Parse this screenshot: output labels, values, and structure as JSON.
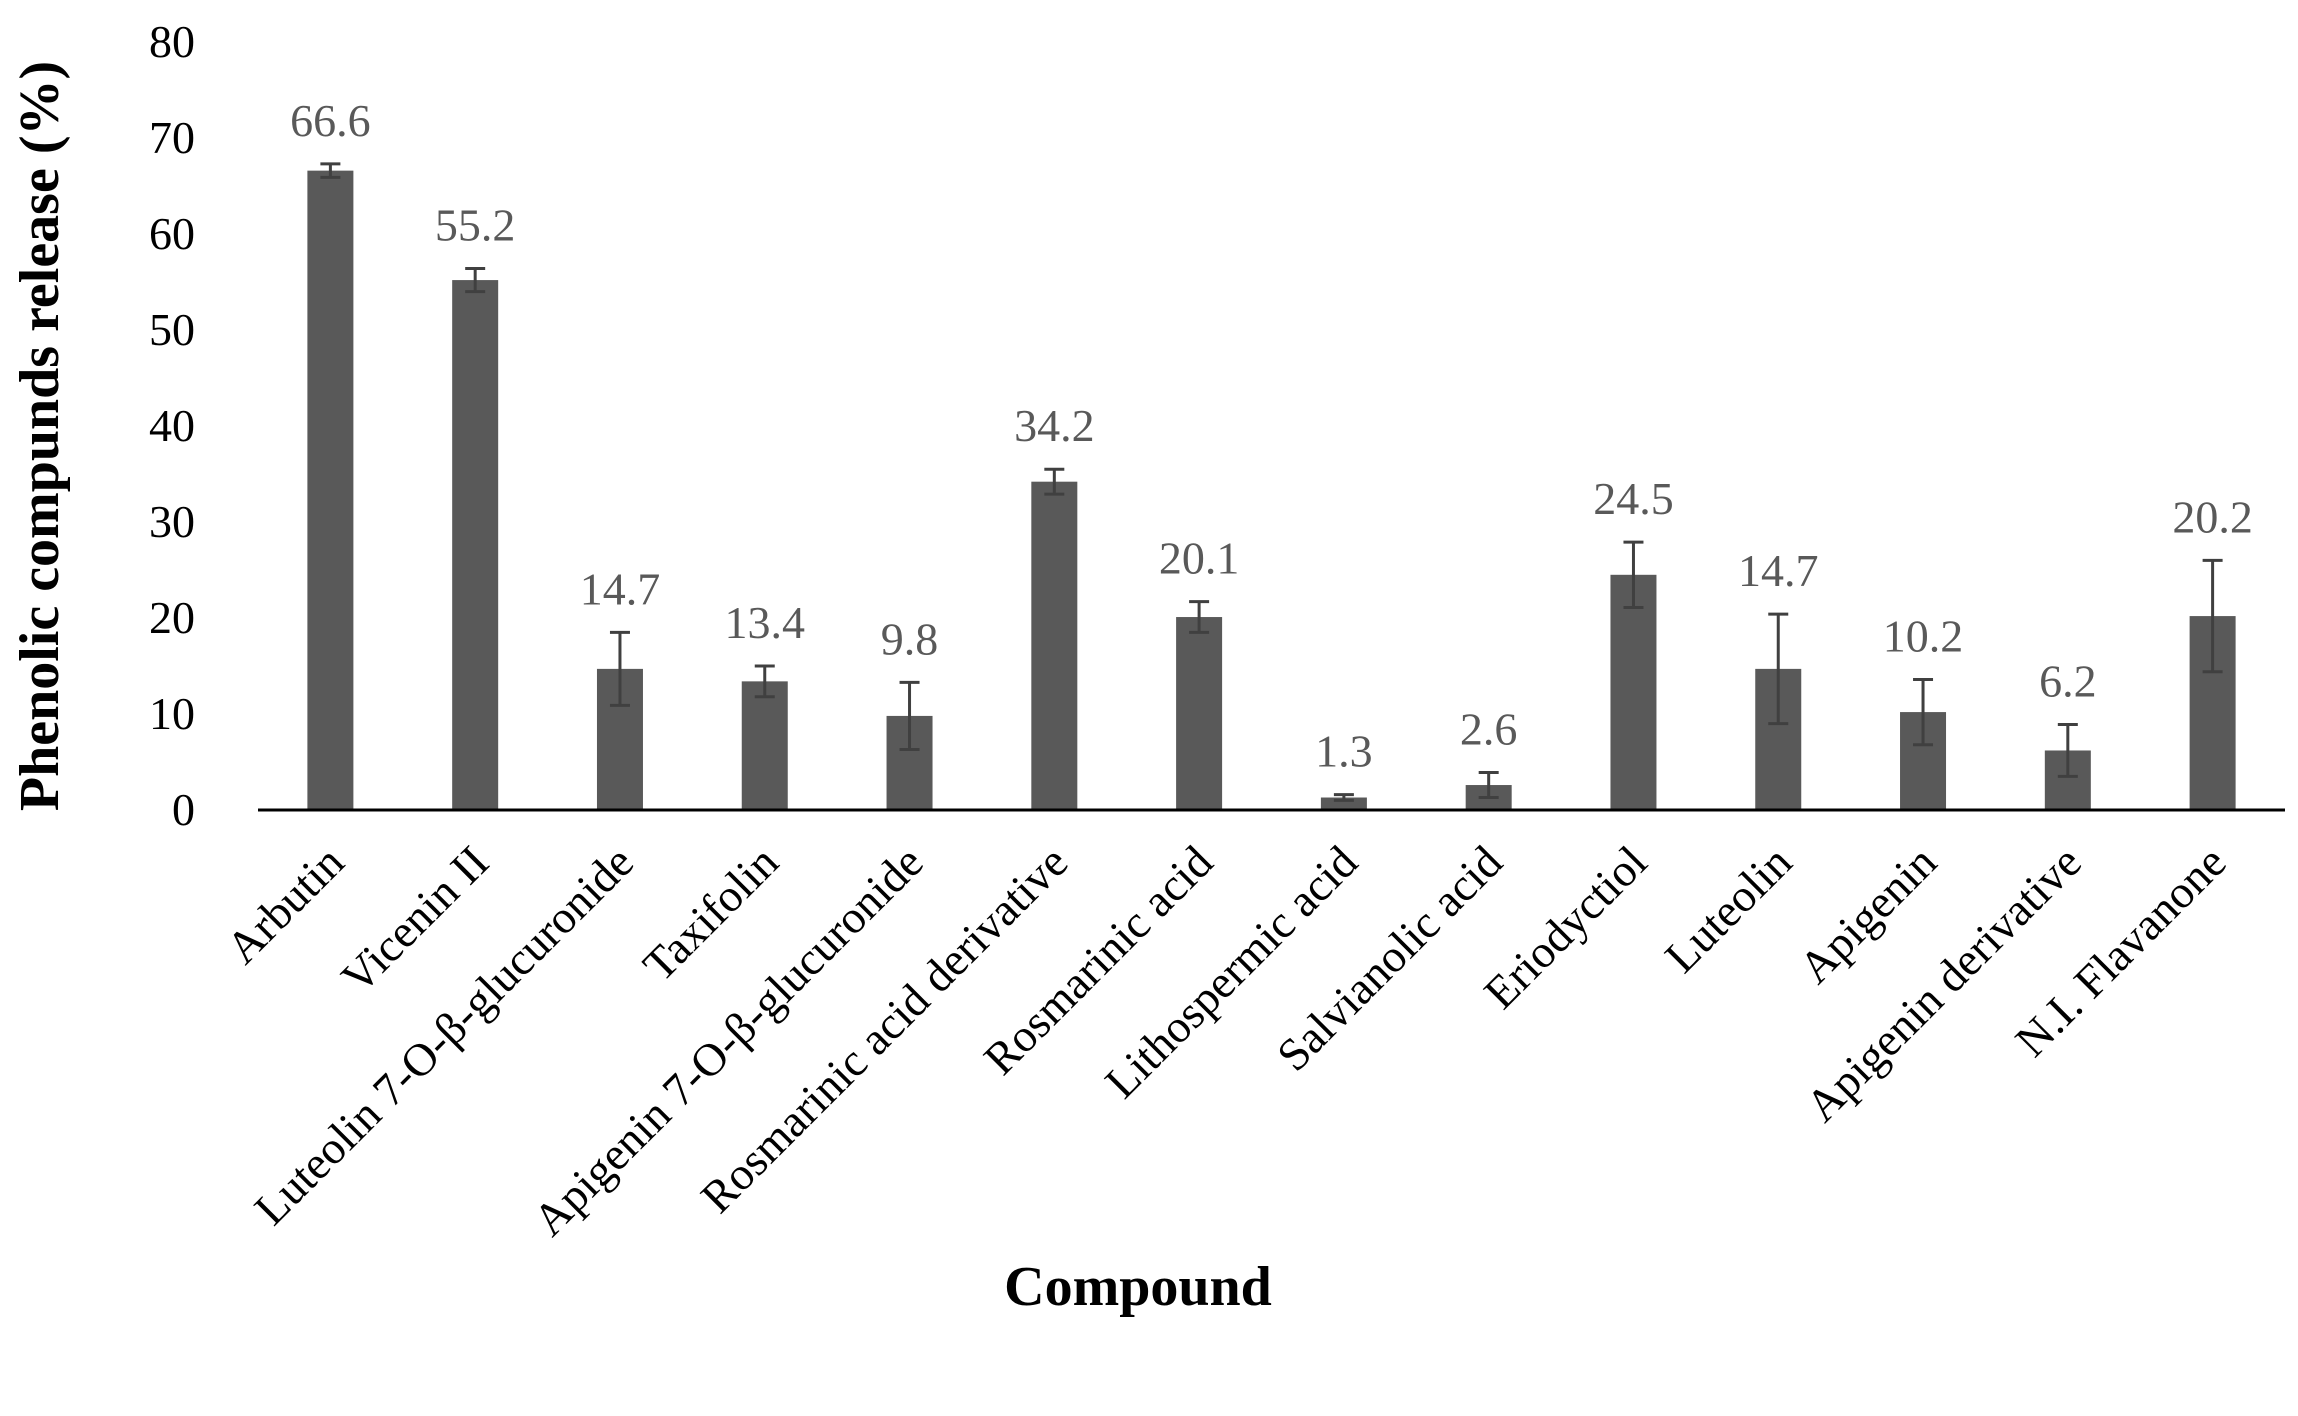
{
  "chart_data": {
    "type": "bar",
    "title": "",
    "xlabel": "Compound",
    "ylabel": "Phenolic compunds release (%)",
    "ylim": [
      0,
      80
    ],
    "yticks": [
      "0",
      "10",
      "20",
      "30",
      "40",
      "50",
      "60",
      "70",
      "80"
    ],
    "grid": false,
    "legend": "none",
    "categories": [
      "Arbutin",
      "Vicenin II",
      "Luteolin 7-O-β-glucuronide",
      "Taxifolin",
      "Apigenin 7-O-β-glucuronide",
      "Rosmarinic acid derivative",
      "Rosmarinic acid",
      "Lithospermic acid",
      "Salvianolic acid",
      "Eriodyctiol",
      "Luteolin",
      "Apigenin",
      "Apigenin derivative",
      "N.I. Flavanone"
    ],
    "values": [
      66.6,
      55.2,
      14.7,
      13.4,
      9.8,
      34.2,
      20.1,
      1.3,
      2.6,
      24.5,
      14.7,
      10.2,
      6.2,
      20.2
    ],
    "value_labels": [
      "66.6",
      "55.2",
      "14.7",
      "13.4",
      "9.8",
      "34.2",
      "20.1",
      "1.3",
      "2.6",
      "24.5",
      "14.7",
      "10.2",
      "6.2",
      "20.2"
    ],
    "error": [
      0.7,
      1.2,
      3.8,
      1.6,
      3.5,
      1.3,
      1.6,
      0.3,
      1.3,
      3.4,
      5.7,
      3.4,
      2.7,
      5.8
    ],
    "colors": {
      "bar": "#595959",
      "error_bar": "#404040",
      "axis": "#000000",
      "data_label": "#595959"
    }
  }
}
